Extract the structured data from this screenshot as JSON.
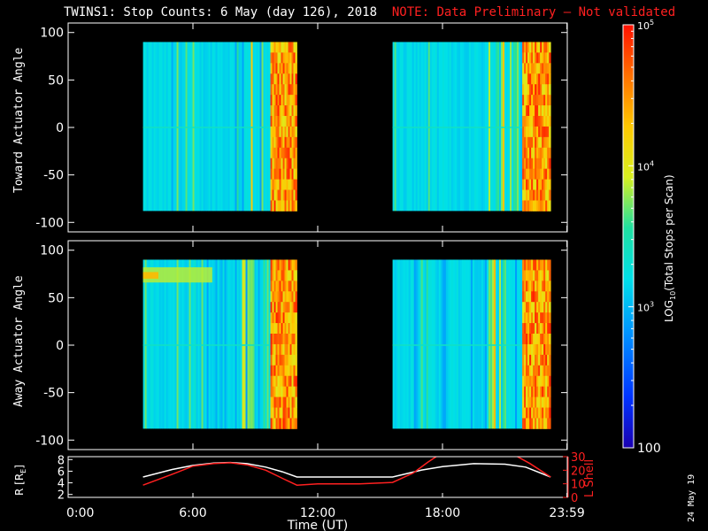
{
  "title": {
    "main": "TWINS1: Stop Counts:  6 May (day 126), 2018",
    "note": "NOTE: Data Preliminary – Not validated"
  },
  "side_date": "24 May 19",
  "colors": {
    "background": "#000000",
    "axis": "#ffffff",
    "note": "#ff2020",
    "r_line": "#ffffff",
    "l_line": "#ff2020"
  },
  "chart_data": [
    {
      "id": "toward",
      "type": "heatmap",
      "ylabel": "Toward Actuator Angle",
      "ylim": [
        -110,
        110
      ],
      "yticks": [
        100,
        50,
        0,
        -50,
        -100
      ],
      "xlim": [
        0,
        24
      ],
      "data_blocks": [
        {
          "x_start": 3.6,
          "x_end": 11.0,
          "y_start": -88,
          "y_end": 90
        },
        {
          "x_start": 15.6,
          "x_end": 23.2,
          "y_start": -88,
          "y_end": 90
        }
      ],
      "color_scale": "log",
      "clim": [
        100,
        100000
      ]
    },
    {
      "id": "away",
      "type": "heatmap",
      "ylabel": "Away Actuator Angle",
      "ylim": [
        -110,
        110
      ],
      "yticks": [
        100,
        50,
        0,
        -50,
        -100
      ],
      "xlim": [
        0,
        24
      ],
      "data_blocks": [
        {
          "x_start": 3.6,
          "x_end": 11.0,
          "y_start": -88,
          "y_end": 90
        },
        {
          "x_start": 15.6,
          "x_end": 23.2,
          "y_start": -88,
          "y_end": 90
        }
      ],
      "color_scale": "log",
      "clim": [
        100,
        100000
      ]
    },
    {
      "id": "orbit",
      "type": "line",
      "ylabel_left": "R [R",
      "ylabel_left_sub": "E",
      "ylabel_left_end": "]",
      "ylabel_right": "L Shell",
      "ylim_left": [
        1.5,
        8.5
      ],
      "yticks_left": [
        2,
        4,
        6,
        8
      ],
      "ylim_right": [
        0,
        30
      ],
      "yticks_right": [
        0,
        10,
        20,
        30
      ],
      "xlabel": "Time (UT)",
      "xlim": [
        0,
        24
      ],
      "xticks": [
        0,
        6,
        12,
        18,
        23.983
      ],
      "xtick_labels": [
        "0:00",
        "6:00",
        "12:00",
        "18:00",
        "23:59"
      ],
      "series": [
        {
          "axis": "left",
          "x": [
            3.6,
            5.0,
            6.0,
            7.0,
            7.8,
            8.6,
            9.5,
            10.3,
            11.0,
            12.0,
            14.0,
            15.6,
            17.0,
            18.0,
            19.5,
            21.0,
            22.0,
            23.2
          ],
          "y": [
            5.0,
            6.3,
            7.0,
            7.4,
            7.5,
            7.3,
            6.7,
            5.9,
            5.0,
            5.0,
            5.0,
            5.0,
            6.2,
            6.8,
            7.3,
            7.2,
            6.7,
            5.0
          ]
        },
        {
          "axis": "right",
          "x": [
            3.6,
            5.0,
            6.0,
            7.0,
            7.8,
            8.6,
            9.5,
            10.3,
            11.0,
            12.0,
            14.0,
            15.6,
            16.6,
            17.3,
            17.7
          ],
          "y": [
            9,
            17,
            23,
            25,
            25.5,
            24,
            20,
            14,
            9,
            10,
            10,
            11,
            18,
            26,
            30
          ]
        },
        {
          "axis": "right",
          "x": [
            21.6,
            22.2,
            22.8,
            23.2
          ],
          "y": [
            30,
            25,
            19,
            15
          ]
        }
      ]
    },
    {
      "id": "colorbar",
      "type": "heatmap",
      "label": "LOG",
      "label_sub": "10",
      "label_end": "(Total Stops per Scan)",
      "clim": [
        100,
        100000
      ],
      "tick_base": "10",
      "tick_exps": [
        "5",
        "4",
        "3"
      ],
      "tick_bottom": "100"
    }
  ]
}
